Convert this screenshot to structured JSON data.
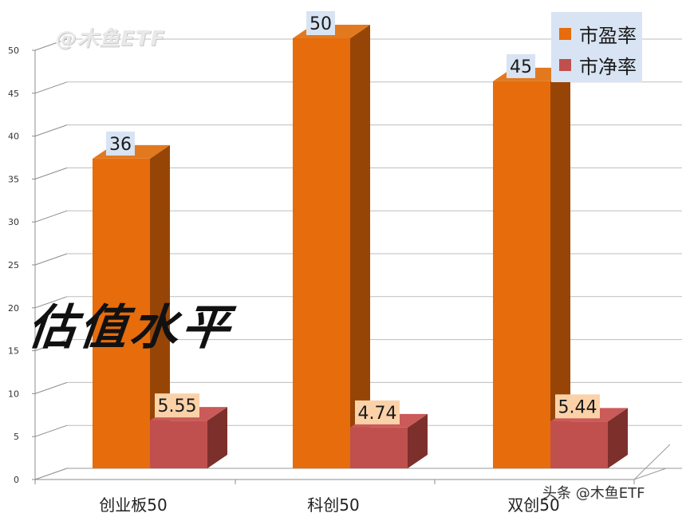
{
  "watermark": "@木鱼ETF",
  "overlay_title": "估值水平",
  "footer_watermark": "头条 @木鱼ETF",
  "colors": {
    "pe": "#e66c0c",
    "pe_top": "#e3791f",
    "pe_side": "#974506",
    "pb": "#c0504d",
    "pb_top": "#ca5b58",
    "pb_side": "#7d2f2c",
    "label_pe_bg": "#d8e4f3",
    "label_pb_bg": "#fbd2a8",
    "grid": "#8c8c8c"
  },
  "chart_data": {
    "type": "bar",
    "categories": [
      "创业板50",
      "科创50",
      "双创50"
    ],
    "series": [
      {
        "name": "市盈率",
        "values": [
          36,
          50,
          45
        ]
      },
      {
        "name": "市净率",
        "values": [
          5.55,
          4.74,
          5.44
        ]
      }
    ],
    "data_labels": [
      [
        "36",
        "50",
        "45"
      ],
      [
        "5.55",
        "4.74",
        "5.44"
      ]
    ],
    "y_ticks": [
      "0",
      "5",
      "10",
      "15",
      "20",
      "25",
      "30",
      "35",
      "40",
      "45",
      "50"
    ],
    "ylim": [
      0,
      50
    ],
    "grid": true,
    "legend_position": "top-right",
    "style": "3d-clustered-column"
  }
}
